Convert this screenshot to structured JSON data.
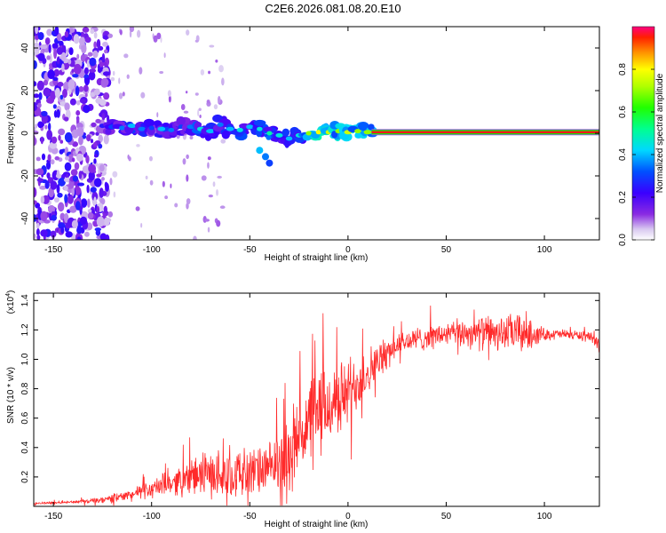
{
  "figure_title": "C2E6.2026.081.08.20.E10",
  "chart_data": [
    {
      "type": "heatmap",
      "name": "spectrogram",
      "xlabel": "Height of straight line (km)",
      "ylabel": "Frequency (Hz)",
      "xlim": [
        -160,
        128
      ],
      "ylim": [
        -50,
        50
      ],
      "xticks": [
        -150,
        -100,
        -50,
        0,
        50,
        100
      ],
      "yticks": [
        -40,
        -20,
        0,
        20,
        40
      ],
      "xtick_labels": [
        "-150",
        "-100",
        "-50",
        "0",
        "50",
        "100"
      ],
      "ytick_labels": [
        "-40",
        "-20",
        "0",
        "20",
        "40"
      ],
      "carrier_band": {
        "x_start": 12,
        "x_end": 128,
        "frequency": 0.5,
        "peak_amplitude": 1.0
      },
      "noise_region_x": [
        -160,
        -122
      ],
      "ridge": [
        [
          -125,
          3.5,
          0.25
        ],
        [
          -120,
          3.0,
          0.3
        ],
        [
          -115,
          2.5,
          0.35
        ],
        [
          -110,
          3.5,
          0.4
        ],
        [
          -105,
          2.0,
          0.35
        ],
        [
          -100,
          2.5,
          0.3
        ],
        [
          -95,
          2.0,
          0.4
        ],
        [
          -90,
          1.5,
          0.35
        ],
        [
          -85,
          3.0,
          0.3
        ],
        [
          -80,
          3.0,
          0.35
        ],
        [
          -75,
          2.0,
          0.45
        ],
        [
          -70,
          1.0,
          0.4
        ],
        [
          -65,
          4.0,
          0.35
        ],
        [
          -60,
          2.0,
          0.4
        ],
        [
          -55,
          1.5,
          0.45
        ],
        [
          -50,
          3.0,
          0.4
        ],
        [
          -45,
          2.0,
          0.45
        ],
        [
          -40,
          0.0,
          0.5
        ],
        [
          -35,
          -1.0,
          0.45
        ],
        [
          -30,
          -2.5,
          0.4
        ],
        [
          -25,
          -1.0,
          0.45
        ],
        [
          -20,
          0.0,
          0.7
        ],
        [
          -15,
          0.5,
          0.8
        ],
        [
          -10,
          0.5,
          0.75
        ],
        [
          -5,
          1.0,
          0.7
        ],
        [
          0,
          0.5,
          0.75
        ],
        [
          5,
          1.0,
          0.7
        ],
        [
          10,
          0.5,
          0.7
        ]
      ],
      "colorbar": {
        "label": "Normalized spectral amplitude",
        "range": [
          0,
          1
        ],
        "ticks": [
          0.0,
          0.2,
          0.4,
          0.6,
          0.8
        ],
        "tick_labels": [
          "0.0",
          "0.2",
          "0.4",
          "0.6",
          "0.8"
        ]
      }
    },
    {
      "type": "line",
      "name": "snr",
      "xlabel": "Height of straight line (km)",
      "ylabel": "SNR (10 * v/v)",
      "y_multiplier": "(x10",
      "y_multiplier_exponent": "4",
      "y_multiplier_close": ")",
      "xlim": [
        -160,
        128
      ],
      "ylim": [
        0,
        1.45
      ],
      "xticks": [
        -150,
        -100,
        -50,
        0,
        50,
        100
      ],
      "yticks": [
        0.2,
        0.4,
        0.6,
        0.8,
        1.0,
        1.2,
        1.4
      ],
      "xtick_labels": [
        "-150",
        "-100",
        "-50",
        "0",
        "50",
        "100"
      ],
      "ytick_labels": [
        "0.2",
        "0.4",
        "0.6",
        "0.8",
        "1.0",
        "1.2",
        "1.4"
      ],
      "series": [
        {
          "name": "SNR",
          "color": "#ff2a2a",
          "envelope": [
            [
              -160,
              0.02,
              0.01
            ],
            [
              -140,
              0.03,
              0.01
            ],
            [
              -125,
              0.04,
              0.03
            ],
            [
              -110,
              0.08,
              0.05
            ],
            [
              -100,
              0.12,
              0.07
            ],
            [
              -90,
              0.16,
              0.1
            ],
            [
              -80,
              0.2,
              0.15
            ],
            [
              -70,
              0.22,
              0.18
            ],
            [
              -60,
              0.22,
              0.2
            ],
            [
              -50,
              0.23,
              0.2
            ],
            [
              -40,
              0.25,
              0.2
            ],
            [
              -30,
              0.35,
              0.3
            ],
            [
              -25,
              0.5,
              0.35
            ],
            [
              -20,
              0.55,
              0.4
            ],
            [
              -15,
              0.62,
              0.4
            ],
            [
              -10,
              0.68,
              0.35
            ],
            [
              -5,
              0.72,
              0.3
            ],
            [
              0,
              0.78,
              0.28
            ],
            [
              5,
              0.85,
              0.25
            ],
            [
              10,
              0.92,
              0.2
            ],
            [
              15,
              0.98,
              0.15
            ],
            [
              20,
              1.05,
              0.12
            ],
            [
              25,
              1.1,
              0.1
            ],
            [
              30,
              1.12,
              0.1
            ],
            [
              40,
              1.15,
              0.1
            ],
            [
              50,
              1.17,
              0.1
            ],
            [
              60,
              1.18,
              0.12
            ],
            [
              70,
              1.18,
              0.14
            ],
            [
              80,
              1.18,
              0.14
            ],
            [
              90,
              1.18,
              0.18
            ],
            [
              95,
              1.17,
              0.1
            ],
            [
              100,
              1.17,
              0.05
            ],
            [
              110,
              1.17,
              0.04
            ],
            [
              120,
              1.16,
              0.04
            ],
            [
              127,
              1.12,
              0.05
            ],
            [
              128,
              1.05,
              0.02
            ]
          ]
        }
      ]
    }
  ]
}
